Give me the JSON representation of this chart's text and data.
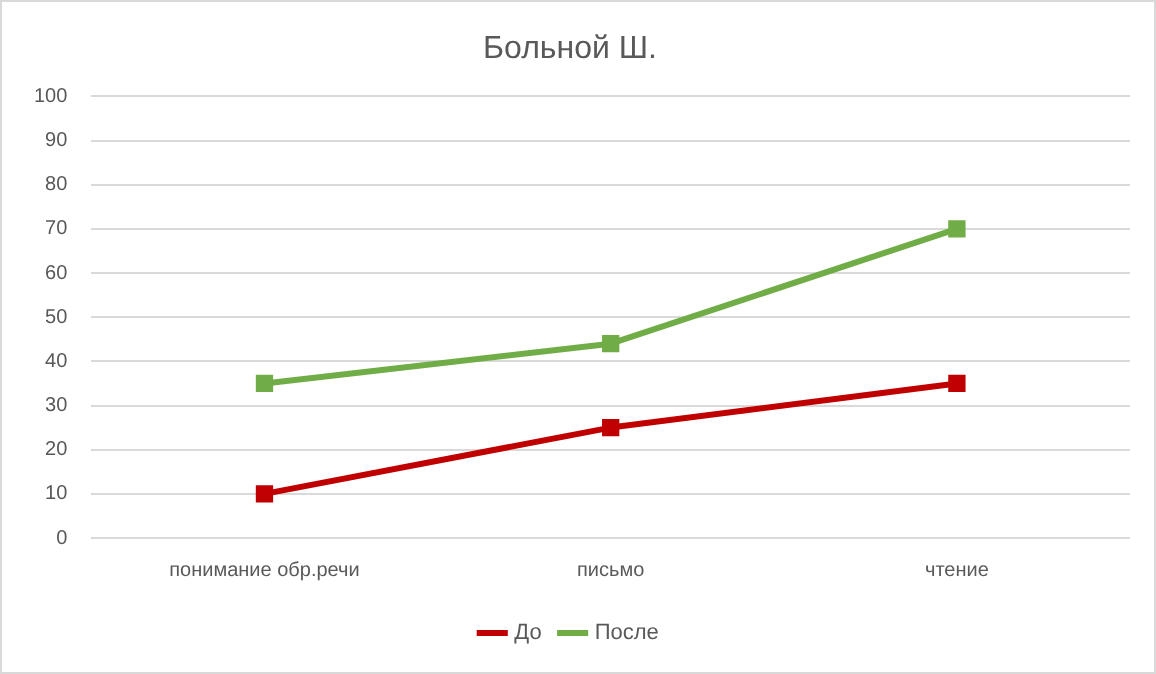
{
  "chart_data": {
    "type": "line",
    "title": "Больной Ш.",
    "categories": [
      "понимание обр.речи",
      "письмо",
      "чтение"
    ],
    "series": [
      {
        "name": "До",
        "color": "#c00000",
        "values": [
          10,
          25,
          35
        ]
      },
      {
        "name": "После",
        "color": "#70ad47",
        "values": [
          35,
          44,
          70
        ]
      }
    ],
    "ylim": [
      0,
      100
    ],
    "yticks": [
      0,
      10,
      20,
      30,
      40,
      50,
      60,
      70,
      80,
      90,
      100
    ],
    "grid": "y",
    "legend": "bottom",
    "marker": "square",
    "line_style": "solid"
  }
}
